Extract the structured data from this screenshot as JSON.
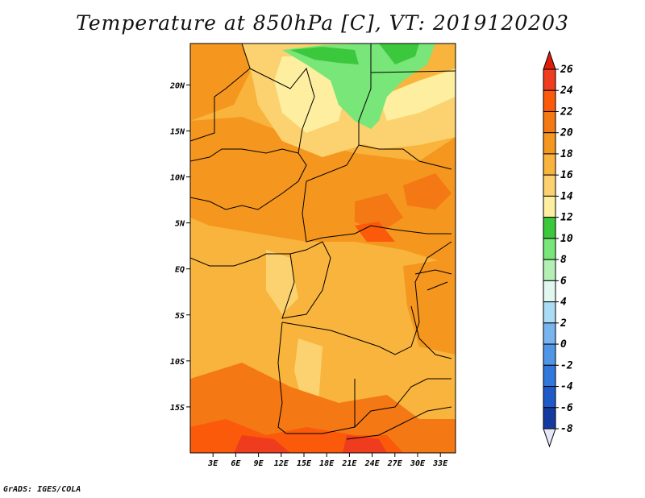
{
  "title": "Temperature at 850hPa [C], VT: 2019120203",
  "footer": "GrADS: IGES/COLA",
  "map": {
    "lon_range": [
      0,
      35
    ],
    "lat_range": [
      -20,
      24.5
    ],
    "lat_ticks": [
      {
        "value": 20,
        "label": "20N"
      },
      {
        "value": 15,
        "label": "15N"
      },
      {
        "value": 10,
        "label": "10N"
      },
      {
        "value": 5,
        "label": "5N"
      },
      {
        "value": 0,
        "label": "EQ"
      },
      {
        "value": -5,
        "label": "5S"
      },
      {
        "value": -10,
        "label": "10S"
      },
      {
        "value": -15,
        "label": "15S"
      }
    ],
    "lon_ticks": [
      {
        "value": 3,
        "label": "3E"
      },
      {
        "value": 6,
        "label": "6E"
      },
      {
        "value": 9,
        "label": "9E"
      },
      {
        "value": 12,
        "label": "12E"
      },
      {
        "value": 15,
        "label": "15E"
      },
      {
        "value": 18,
        "label": "18E"
      },
      {
        "value": 21,
        "label": "21E"
      },
      {
        "value": 24,
        "label": "24E"
      },
      {
        "value": 27,
        "label": "27E"
      },
      {
        "value": 30,
        "label": "30E"
      },
      {
        "value": 33,
        "label": "33E"
      }
    ]
  },
  "colorbar": {
    "levels": [
      {
        "label": "26",
        "color": "#f03c1e"
      },
      {
        "label": "24",
        "color": "#fa5a0a"
      },
      {
        "label": "22",
        "color": "#f47814"
      },
      {
        "label": "20",
        "color": "#f5961e"
      },
      {
        "label": "18",
        "color": "#f8b43c"
      },
      {
        "label": "16",
        "color": "#fcd270"
      },
      {
        "label": "14",
        "color": "#fdeea0"
      },
      {
        "label": "12",
        "color": "#3cc83c"
      },
      {
        "label": "10",
        "color": "#78e678"
      },
      {
        "label": "8",
        "color": "#b4f0b4"
      },
      {
        "label": "6",
        "color": "#e0f8f0"
      },
      {
        "label": "4",
        "color": "#aadcf5"
      },
      {
        "label": "2",
        "color": "#78b4f0"
      },
      {
        "label": "0",
        "color": "#5096e6"
      },
      {
        "label": "-2",
        "color": "#3278dc"
      },
      {
        "label": "-4",
        "color": "#1e5ac8"
      },
      {
        "label": "-6",
        "color": "#143ca0"
      },
      {
        "label": "-8",
        "color": "#0a1e78"
      }
    ],
    "top_color": "#dc1e0a",
    "bottom_color": "#e6e6fa"
  }
}
